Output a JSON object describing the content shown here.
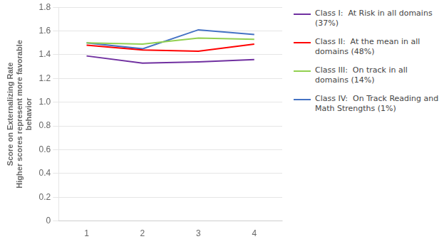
{
  "chart_data": {
    "type": "line",
    "ylabel": [
      "Score on Externalizing Rate",
      "Higher scores represent more favorable",
      "behavior"
    ],
    "x": [
      1,
      2,
      3,
      4
    ],
    "series": [
      {
        "name": "Class I:  At Risk in all domains\n(37%)",
        "color": "#7030A0",
        "values": [
          1.39,
          1.33,
          1.34,
          1.36
        ]
      },
      {
        "name": "Class II:  At the mean in all\ndomains (48%)",
        "color": "#FF0000",
        "values": [
          1.48,
          1.44,
          1.43,
          1.49
        ]
      },
      {
        "name": "Class III:  On track in all\ndomains (14%)",
        "color": "#92D050",
        "values": [
          1.5,
          1.49,
          1.54,
          1.53
        ]
      },
      {
        "name": "Class IV:  On Track Reading and\nMath Strengths (1%)",
        "color": "#4472C4",
        "values": [
          1.5,
          1.45,
          1.61,
          1.57
        ]
      }
    ],
    "xlim": [
      0.5,
      4.5
    ],
    "xticks": [
      1,
      2,
      3,
      4
    ],
    "ylim": [
      0,
      1.8
    ],
    "yticks": [
      0,
      0.2,
      0.4,
      0.6,
      0.8,
      {
        "value": 1.0,
        "label": "1.0"
      },
      1.2,
      1.4,
      1.6,
      1.8
    ],
    "grid": "y",
    "legend": "right"
  }
}
